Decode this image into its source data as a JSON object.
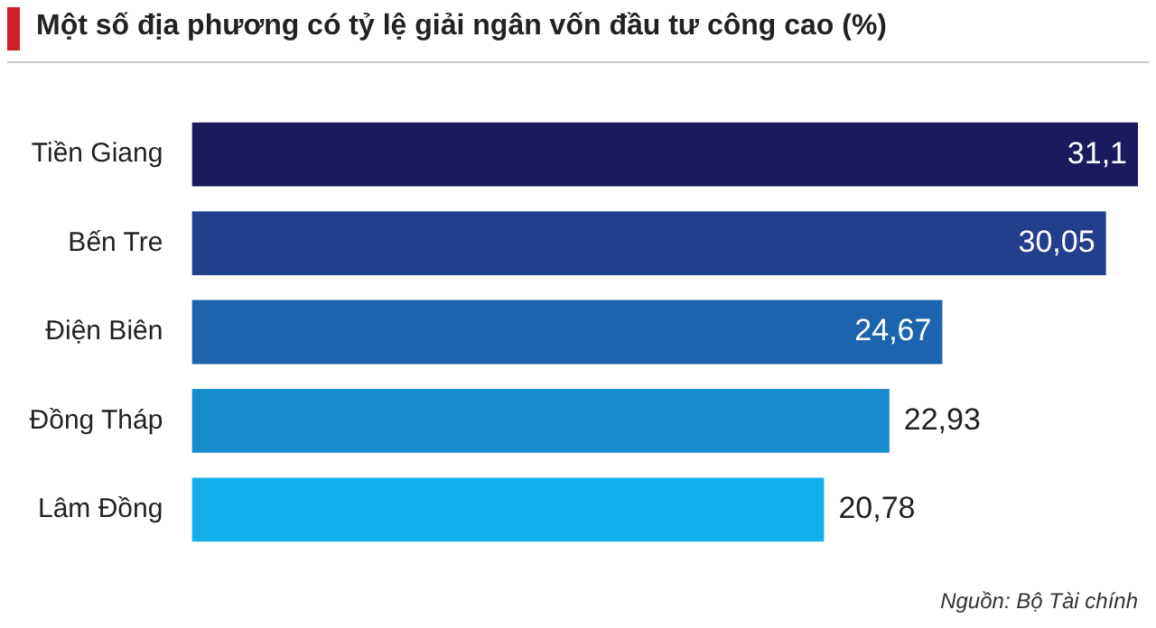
{
  "chart_data": {
    "type": "bar",
    "orientation": "horizontal",
    "title": "Một số địa phương có tỷ lệ giải ngân vốn đầu tư công cao (%)",
    "categories": [
      "Tiền Giang",
      "Bến Tre",
      "Điện Biên",
      "Đồng Tháp",
      "Lâm Đồng"
    ],
    "values": [
      31.1,
      30.05,
      24.67,
      22.93,
      20.78
    ],
    "colors": [
      "#1b1a5c",
      "#223f8e",
      "#1c64ae",
      "#168dcd",
      "#12aee9"
    ],
    "value_labels": [
      "31,1",
      "30,05",
      "24,67",
      "22,93",
      "20,78"
    ],
    "annotations": [
      "Nguồn: Bộ Tài chính"
    ]
  }
}
